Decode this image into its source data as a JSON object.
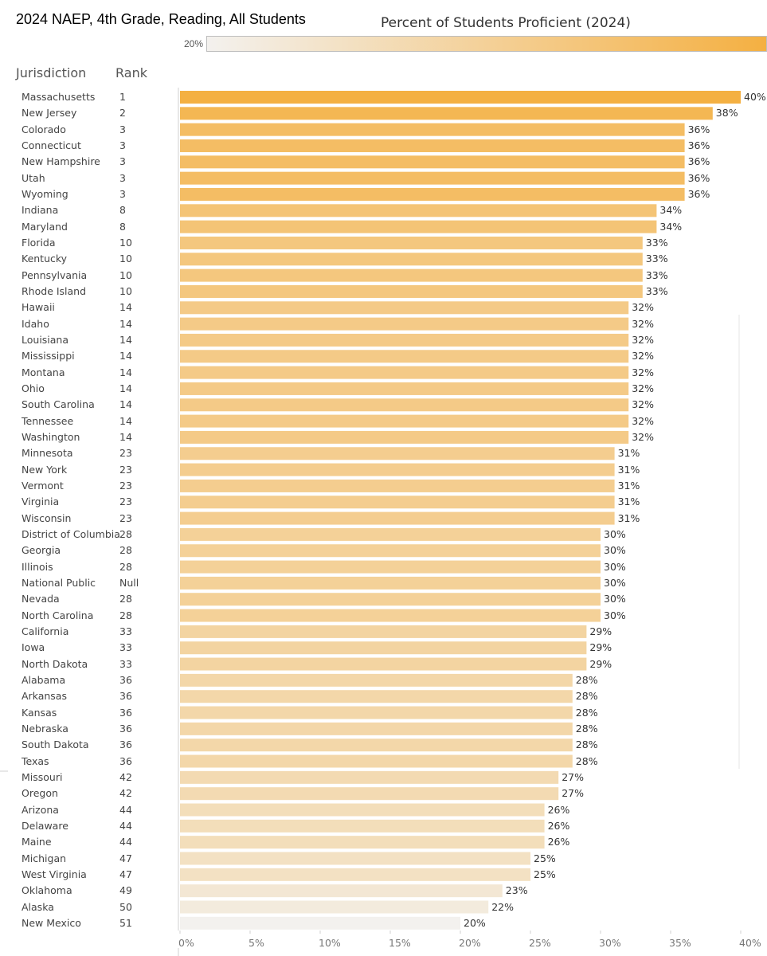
{
  "title": "2024 NAEP, 4th Grade, Reading, All Students",
  "legend": {
    "title": "Percent of Students Proficient (2024)",
    "min_label": "20%",
    "color_low": "#f3f1ee",
    "color_high": "#f4b042"
  },
  "headers": {
    "jurisdiction": "Jurisdiction",
    "rank": "Rank"
  },
  "chart_data": {
    "type": "bar",
    "orientation": "horizontal",
    "title": "Percent of Students Proficient (2024)",
    "xlabel": "",
    "ylabel": "Jurisdiction",
    "xlim": [
      0,
      42
    ],
    "ticks": [
      "0%",
      "5%",
      "10%",
      "15%",
      "20%",
      "25%",
      "30%",
      "35%",
      "40%"
    ],
    "tick_values": [
      0,
      5,
      10,
      15,
      20,
      25,
      30,
      35,
      40
    ],
    "rows": [
      {
        "name": "Massachusetts",
        "rank": "1",
        "value": 40,
        "label": "40%"
      },
      {
        "name": "New Jersey",
        "rank": "2",
        "value": 38,
        "label": "38%"
      },
      {
        "name": "Colorado",
        "rank": "3",
        "value": 36,
        "label": "36%"
      },
      {
        "name": "Connecticut",
        "rank": "3",
        "value": 36,
        "label": "36%"
      },
      {
        "name": "New Hampshire",
        "rank": "3",
        "value": 36,
        "label": "36%"
      },
      {
        "name": "Utah",
        "rank": "3",
        "value": 36,
        "label": "36%"
      },
      {
        "name": "Wyoming",
        "rank": "3",
        "value": 36,
        "label": "36%"
      },
      {
        "name": "Indiana",
        "rank": "8",
        "value": 34,
        "label": "34%"
      },
      {
        "name": "Maryland",
        "rank": "8",
        "value": 34,
        "label": "34%"
      },
      {
        "name": "Florida",
        "rank": "10",
        "value": 33,
        "label": "33%"
      },
      {
        "name": "Kentucky",
        "rank": "10",
        "value": 33,
        "label": "33%"
      },
      {
        "name": "Pennsylvania",
        "rank": "10",
        "value": 33,
        "label": "33%"
      },
      {
        "name": "Rhode Island",
        "rank": "10",
        "value": 33,
        "label": "33%"
      },
      {
        "name": "Hawaii",
        "rank": "14",
        "value": 32,
        "label": "32%"
      },
      {
        "name": "Idaho",
        "rank": "14",
        "value": 32,
        "label": "32%"
      },
      {
        "name": "Louisiana",
        "rank": "14",
        "value": 32,
        "label": "32%"
      },
      {
        "name": "Mississippi",
        "rank": "14",
        "value": 32,
        "label": "32%"
      },
      {
        "name": "Montana",
        "rank": "14",
        "value": 32,
        "label": "32%"
      },
      {
        "name": "Ohio",
        "rank": "14",
        "value": 32,
        "label": "32%"
      },
      {
        "name": "South Carolina",
        "rank": "14",
        "value": 32,
        "label": "32%"
      },
      {
        "name": "Tennessee",
        "rank": "14",
        "value": 32,
        "label": "32%"
      },
      {
        "name": "Washington",
        "rank": "14",
        "value": 32,
        "label": "32%"
      },
      {
        "name": "Minnesota",
        "rank": "23",
        "value": 31,
        "label": "31%"
      },
      {
        "name": "New York",
        "rank": "23",
        "value": 31,
        "label": "31%"
      },
      {
        "name": "Vermont",
        "rank": "23",
        "value": 31,
        "label": "31%"
      },
      {
        "name": "Virginia",
        "rank": "23",
        "value": 31,
        "label": "31%"
      },
      {
        "name": "Wisconsin",
        "rank": "23",
        "value": 31,
        "label": "31%"
      },
      {
        "name": "District of Columbia",
        "rank": "28",
        "value": 30,
        "label": "30%"
      },
      {
        "name": "Georgia",
        "rank": "28",
        "value": 30,
        "label": "30%"
      },
      {
        "name": "Illinois",
        "rank": "28",
        "value": 30,
        "label": "30%"
      },
      {
        "name": "National Public",
        "rank": "Null",
        "value": 30,
        "label": "30%"
      },
      {
        "name": "Nevada",
        "rank": "28",
        "value": 30,
        "label": "30%"
      },
      {
        "name": "North Carolina",
        "rank": "28",
        "value": 30,
        "label": "30%"
      },
      {
        "name": "California",
        "rank": "33",
        "value": 29,
        "label": "29%"
      },
      {
        "name": "Iowa",
        "rank": "33",
        "value": 29,
        "label": "29%"
      },
      {
        "name": "North Dakota",
        "rank": "33",
        "value": 29,
        "label": "29%"
      },
      {
        "name": "Alabama",
        "rank": "36",
        "value": 28,
        "label": "28%"
      },
      {
        "name": "Arkansas",
        "rank": "36",
        "value": 28,
        "label": "28%"
      },
      {
        "name": "Kansas",
        "rank": "36",
        "value": 28,
        "label": "28%"
      },
      {
        "name": "Nebraska",
        "rank": "36",
        "value": 28,
        "label": "28%"
      },
      {
        "name": "South Dakota",
        "rank": "36",
        "value": 28,
        "label": "28%"
      },
      {
        "name": "Texas",
        "rank": "36",
        "value": 28,
        "label": "28%"
      },
      {
        "name": "Missouri",
        "rank": "42",
        "value": 27,
        "label": "27%"
      },
      {
        "name": "Oregon",
        "rank": "42",
        "value": 27,
        "label": "27%"
      },
      {
        "name": "Arizona",
        "rank": "44",
        "value": 26,
        "label": "26%"
      },
      {
        "name": "Delaware",
        "rank": "44",
        "value": 26,
        "label": "26%"
      },
      {
        "name": "Maine",
        "rank": "44",
        "value": 26,
        "label": "26%"
      },
      {
        "name": "Michigan",
        "rank": "47",
        "value": 25,
        "label": "25%"
      },
      {
        "name": "West Virginia",
        "rank": "47",
        "value": 25,
        "label": "25%"
      },
      {
        "name": "Oklahoma",
        "rank": "49",
        "value": 23,
        "label": "23%"
      },
      {
        "name": "Alaska",
        "rank": "50",
        "value": 22,
        "label": "22%"
      },
      {
        "name": "New Mexico",
        "rank": "51",
        "value": 20,
        "label": "20%"
      }
    ]
  }
}
